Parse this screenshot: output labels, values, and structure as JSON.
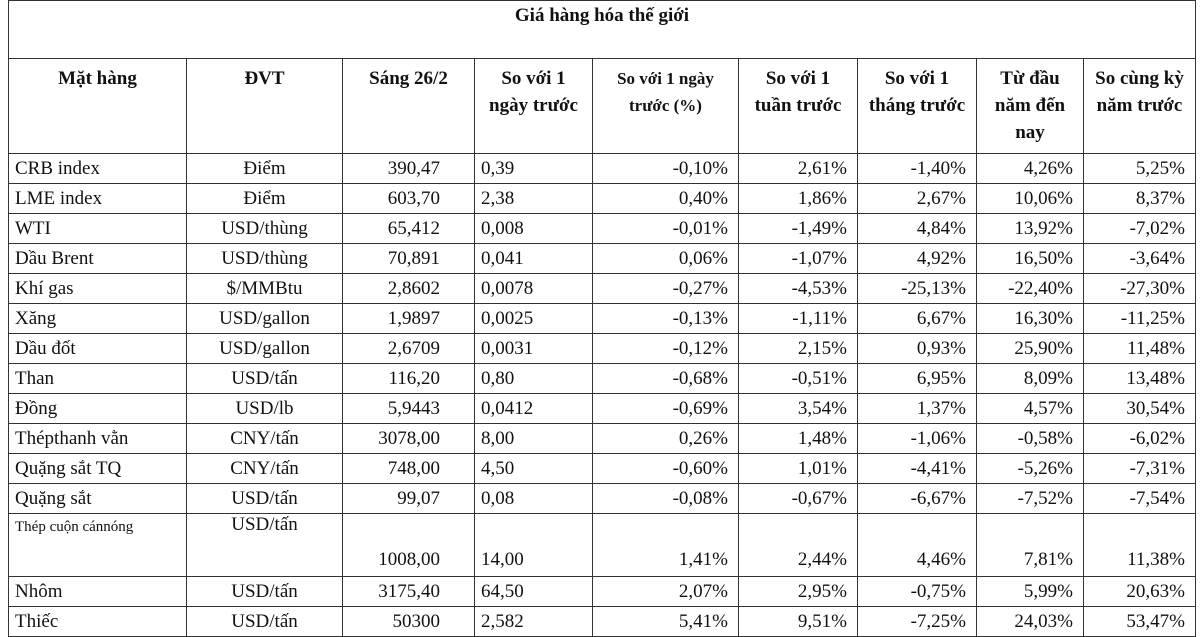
{
  "title": "Giá hàng hóa thế giới",
  "headers": [
    "Mặt hàng",
    "ĐVT",
    "Sáng 26/2",
    "So với 1 ngày trước",
    "So với 1 ngày trước (%)",
    "So với 1 tuần trước",
    "So với 1 tháng trước",
    "Từ đầu năm đến nay",
    "So cùng kỳ năm trước"
  ],
  "rows": [
    [
      "CRB index",
      "Điểm",
      "390,47",
      "0,39",
      "-0,10%",
      "2,61%",
      "-1,40%",
      "4,26%",
      "5,25%"
    ],
    [
      "LME index",
      "Điểm",
      "603,70",
      "2,38",
      "0,40%",
      "1,86%",
      "2,67%",
      "10,06%",
      "8,37%"
    ],
    [
      "WTI",
      "USD/thùng",
      "65,412",
      "0,008",
      "-0,01%",
      "-1,49%",
      "4,84%",
      "13,92%",
      "-7,02%"
    ],
    [
      "Dầu Brent",
      "USD/thùng",
      "70,891",
      "0,041",
      "0,06%",
      "-1,07%",
      "4,92%",
      "16,50%",
      "-3,64%"
    ],
    [
      "Khí gas",
      "$/MMBtu",
      "2,8602",
      "0,0078",
      "-0,27%",
      "-4,53%",
      "-25,13%",
      "-22,40%",
      "-27,30%"
    ],
    [
      "Xăng",
      "USD/gallon",
      "1,9897",
      "0,0025",
      "-0,13%",
      "-1,11%",
      "6,67%",
      "16,30%",
      "-11,25%"
    ],
    [
      "Dầu đốt",
      "USD/gallon",
      "2,6709",
      "0,0031",
      "-0,12%",
      "2,15%",
      "0,93%",
      "25,90%",
      "11,48%"
    ],
    [
      "Than",
      "USD/tấn",
      "116,20",
      "0,80",
      "-0,68%",
      "-0,51%",
      "6,95%",
      "8,09%",
      "13,48%"
    ],
    [
      "Đồng",
      "USD/lb",
      "5,9443",
      "0,0412",
      "-0,69%",
      "3,54%",
      "1,37%",
      "4,57%",
      "30,54%"
    ],
    [
      "Thépthanh vằn",
      "CNY/tấn",
      "3078,00",
      "8,00",
      "0,26%",
      "1,48%",
      "-1,06%",
      "-0,58%",
      "-6,02%"
    ],
    [
      "Quặng sắt TQ",
      "CNY/tấn",
      "748,00",
      "4,50",
      "-0,60%",
      "1,01%",
      "-4,41%",
      "-5,26%",
      "-7,31%"
    ],
    [
      "Quặng sắt",
      "USD/tấn",
      "99,07",
      "0,08",
      "-0,08%",
      "-0,67%",
      "-6,67%",
      "-7,52%",
      "-7,54%"
    ],
    [
      "Thép cuộn cánnóng",
      "USD/tấn",
      "1008,00",
      "14,00",
      "1,41%",
      "2,44%",
      "4,46%",
      "7,81%",
      "11,38%"
    ],
    [
      "Nhôm",
      "USD/tấn",
      "3175,40",
      "64,50",
      "2,07%",
      "2,95%",
      "-0,75%",
      "5,99%",
      "20,63%"
    ],
    [
      "Thiếc",
      "USD/tấn",
      "50300",
      "2,582",
      "5,41%",
      "9,51%",
      "-7,25%",
      "24,03%",
      "53,47%"
    ]
  ]
}
